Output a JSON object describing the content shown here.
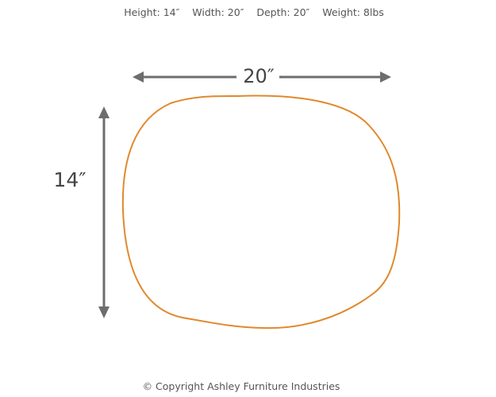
{
  "header": {
    "specs": [
      "Height: 14″",
      "Width: 20″",
      "Depth: 20″",
      "Weight: 8lbs"
    ]
  },
  "dimensions": {
    "width": "20″",
    "height": "14″"
  },
  "footer": "© Copyright Ashley Furniture Industries"
}
